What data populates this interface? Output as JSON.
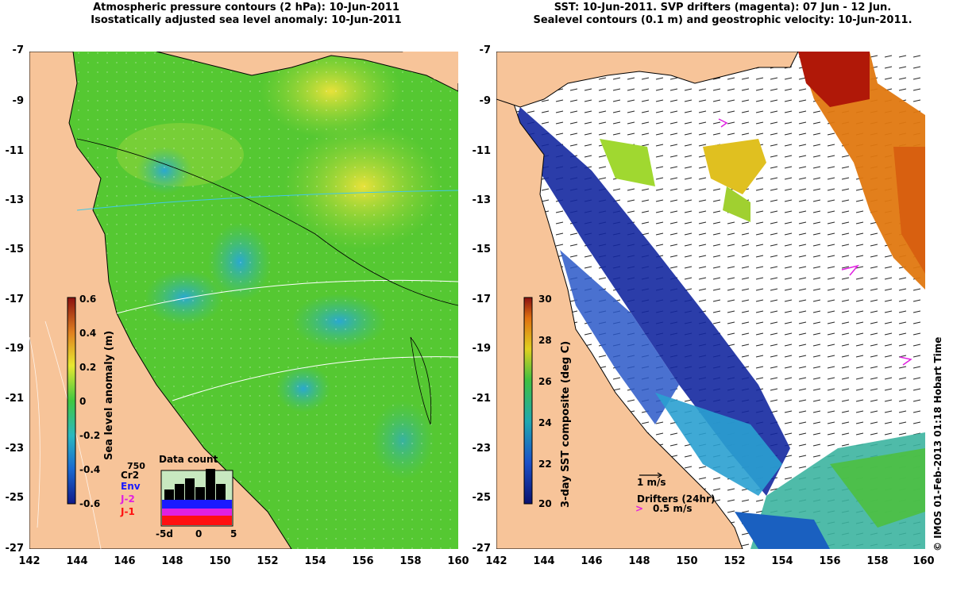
{
  "left_panel": {
    "title_line1": "Atmospheric pressure contours (2 hPa): 10-Jun-2011",
    "title_line2": "Isostatically adjusted sea level anomaly: 10-Jun-2011",
    "colorbar_label": "Sea level anomaly (m)",
    "colorbar_ticks": [
      "0.6",
      "0.4",
      "0.2",
      "0",
      "-0.2",
      "-0.4",
      "-0.6"
    ],
    "inset": {
      "title": "Data count",
      "max_label": "750",
      "x_ticks": [
        "-5d",
        "0",
        "5"
      ],
      "missions": [
        {
          "name": "Cr2",
          "color": "#000000"
        },
        {
          "name": "Env",
          "color": "#1a1aff"
        },
        {
          "name": "J-2",
          "color": "#e020e0"
        },
        {
          "name": "J-1",
          "color": "#ff1010"
        }
      ]
    }
  },
  "right_panel": {
    "title_line1": "SST: 10-Jun-2011. SVP drifters (magenta): 07 Jun - 12 Jun.",
    "title_line2": "Sealevel contours (0.1 m) and geostrophic velocity: 10-Jun-2011.",
    "colorbar_label": "3-day SST composite (deg C)",
    "colorbar_ticks": [
      "30",
      "28",
      "26",
      "24",
      "22",
      "20"
    ],
    "velocity_scale": "1 m/s",
    "drifters_label": "Drifters (24hr)",
    "drifters_symbol": ">",
    "drifters_speed": "0.5 m/s"
  },
  "axes": {
    "y_ticks": [
      "-7",
      "-9",
      "-11",
      "-13",
      "-15",
      "-17",
      "-19",
      "-21",
      "-23",
      "-25",
      "-27"
    ],
    "x_ticks": [
      "142",
      "144",
      "146",
      "148",
      "150",
      "152",
      "154",
      "156",
      "158",
      "160"
    ]
  },
  "credit": "© IMOS 01-Feb-2013 01:18 Hobart Time",
  "colors": {
    "land": "#f7c499",
    "ocean_green": "#55c832",
    "sst_white": "#ffffff"
  }
}
